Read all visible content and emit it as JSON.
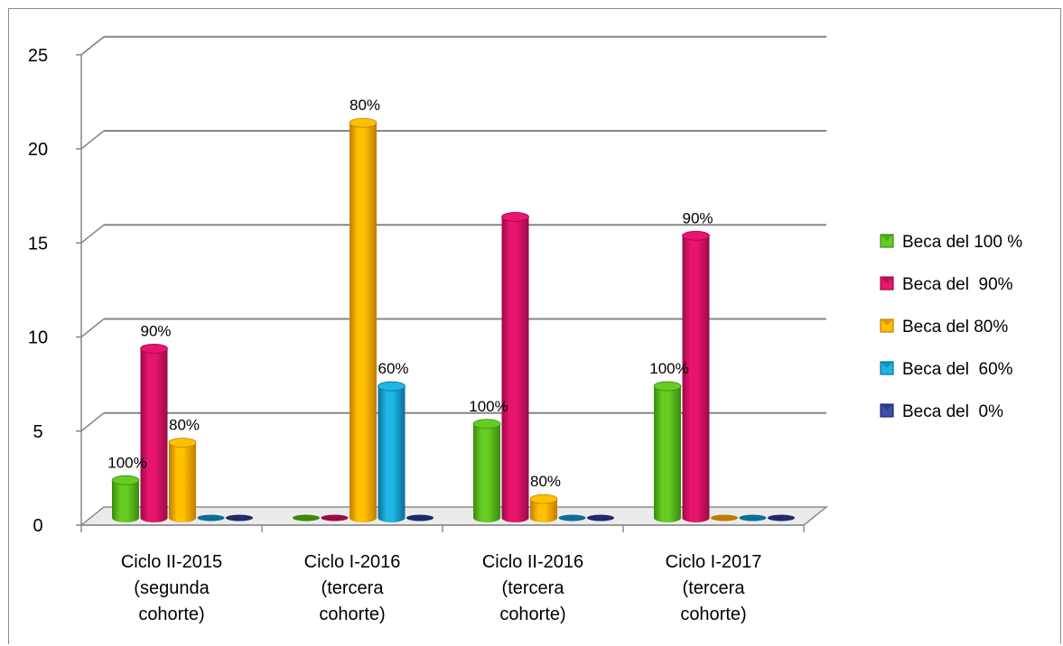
{
  "chart_data": {
    "type": "bar",
    "title": "",
    "xlabel": "",
    "ylabel": "",
    "ylim": [
      0,
      25
    ],
    "yticks": [
      "0",
      "5",
      "10",
      "15",
      "20",
      "25"
    ],
    "grid": true,
    "legend_position": "right",
    "categories": [
      [
        "Ciclo II-2015",
        "(segunda",
        "cohorte)"
      ],
      [
        "Ciclo I-2016",
        "(tercera",
        "cohorte)"
      ],
      [
        "Ciclo II-2016",
        "(tercera",
        "cohorte)"
      ],
      [
        "Ciclo I-2017",
        "(tercera",
        "cohorte)"
      ]
    ],
    "series": [
      {
        "name": "Beca del 100 %",
        "color": "#66cc22",
        "dark": "#3a8a0e",
        "values": [
          2,
          0,
          5,
          7
        ],
        "labels": [
          "100%",
          "",
          "100%",
          "100%"
        ]
      },
      {
        "name": "Beca del  90%",
        "color": "#e8156e",
        "dark": "#9a0a46",
        "values": [
          9,
          0,
          16,
          15
        ],
        "labels": [
          "90%",
          "",
          "",
          "90%"
        ]
      },
      {
        "name": "Beca del 80%",
        "color": "#ffc000",
        "dark": "#c07c00",
        "values": [
          4,
          21,
          1,
          0
        ],
        "labels": [
          "80%",
          "80%",
          "80%",
          ""
        ]
      },
      {
        "name": "Beca del  60%",
        "color": "#1fb6e6",
        "dark": "#0a6f96",
        "values": [
          0,
          7,
          0,
          0
        ],
        "labels": [
          "",
          "60%",
          "",
          ""
        ]
      },
      {
        "name": "Beca del  0%",
        "color": "#3f4fa8",
        "dark": "#202a6a",
        "values": [
          0,
          0,
          0,
          0
        ],
        "labels": [
          "",
          "",
          "",
          ""
        ]
      }
    ]
  }
}
